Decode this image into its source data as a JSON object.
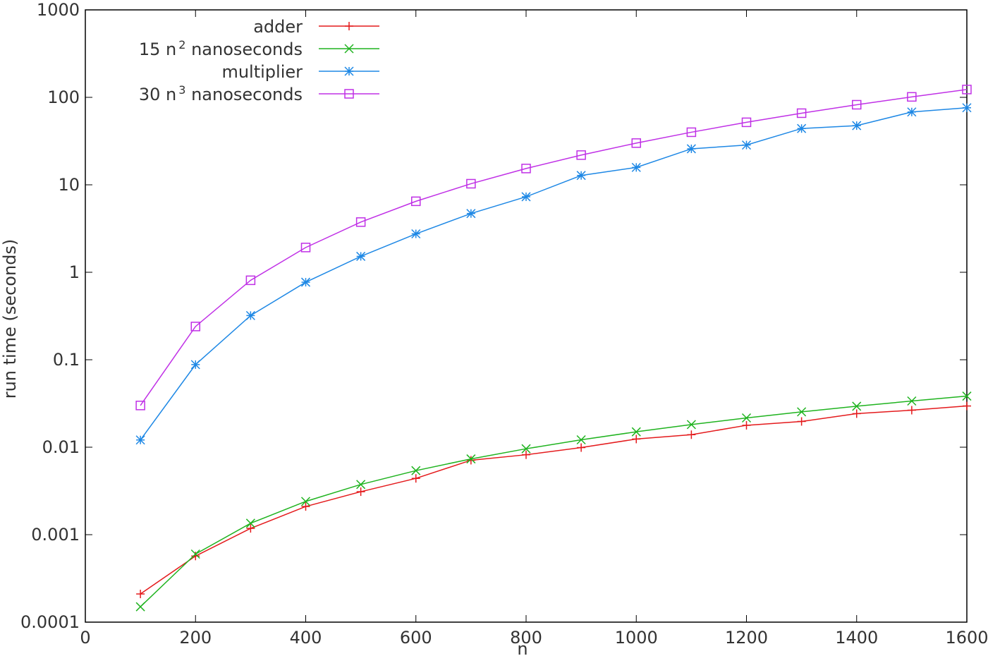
{
  "chart_data": {
    "type": "line",
    "xlabel": "n",
    "ylabel": "run time (seconds)",
    "xlim": [
      0,
      1600
    ],
    "ylim": [
      0.0001,
      1000
    ],
    "yscale": "log",
    "grid": false,
    "legend_position": "top-left",
    "x_ticks": [
      0,
      200,
      400,
      600,
      800,
      1000,
      1200,
      1400,
      1600
    ],
    "x_tick_labels": [
      "0",
      "200",
      "400",
      "600",
      "800",
      "1000",
      "1200",
      "1400",
      "1600"
    ],
    "y_ticks": [
      0.0001,
      0.001,
      0.01,
      0.1,
      1,
      10,
      100,
      1000
    ],
    "y_tick_labels": [
      "0.0001",
      "0.001",
      "0.01",
      "0.1",
      "1",
      "10",
      "100",
      "1000"
    ],
    "x": [
      100,
      200,
      300,
      400,
      500,
      600,
      700,
      800,
      900,
      1000,
      1100,
      1200,
      1300,
      1400,
      1500,
      1600
    ],
    "series": [
      {
        "name": "adder",
        "legend_text": "adder",
        "legend_sup": "",
        "legend_suffix": "",
        "color": "#e41a1c",
        "marker": "plus",
        "values": [
          0.00021,
          0.00057,
          0.00118,
          0.0021,
          0.0031,
          0.0044,
          0.0071,
          0.0082,
          0.0099,
          0.0124,
          0.0139,
          0.0178,
          0.0197,
          0.0242,
          0.0265,
          0.0296
        ]
      },
      {
        "name": "15 n2 nanoseconds",
        "legend_text": "15 n",
        "legend_sup": "2",
        "legend_suffix": " nanoseconds",
        "color": "#1fb31f",
        "marker": "cross",
        "values": [
          0.00015,
          0.0006,
          0.00135,
          0.0024,
          0.00375,
          0.0054,
          0.00735,
          0.0096,
          0.01215,
          0.015,
          0.01815,
          0.0216,
          0.02535,
          0.0294,
          0.03375,
          0.0384
        ]
      },
      {
        "name": "multiplier",
        "legend_text": "multiplier",
        "legend_sup": "",
        "legend_suffix": "",
        "color": "#1e88e5",
        "marker": "star",
        "values": [
          0.0121,
          0.088,
          0.32,
          0.77,
          1.52,
          2.75,
          4.7,
          7.3,
          12.8,
          15.8,
          25.8,
          28.5,
          44,
          47.5,
          68,
          76
        ]
      },
      {
        "name": "30 n3 nanoseconds",
        "legend_text": "30 n",
        "legend_sup": "3",
        "legend_suffix": " nanoseconds",
        "color": "#c030e6",
        "marker": "square",
        "values": [
          0.03,
          0.24,
          0.81,
          1.92,
          3.75,
          6.48,
          10.29,
          15.36,
          21.87,
          30,
          39.93,
          51.84,
          65.91,
          82.32,
          101.25,
          122.88
        ]
      }
    ]
  }
}
